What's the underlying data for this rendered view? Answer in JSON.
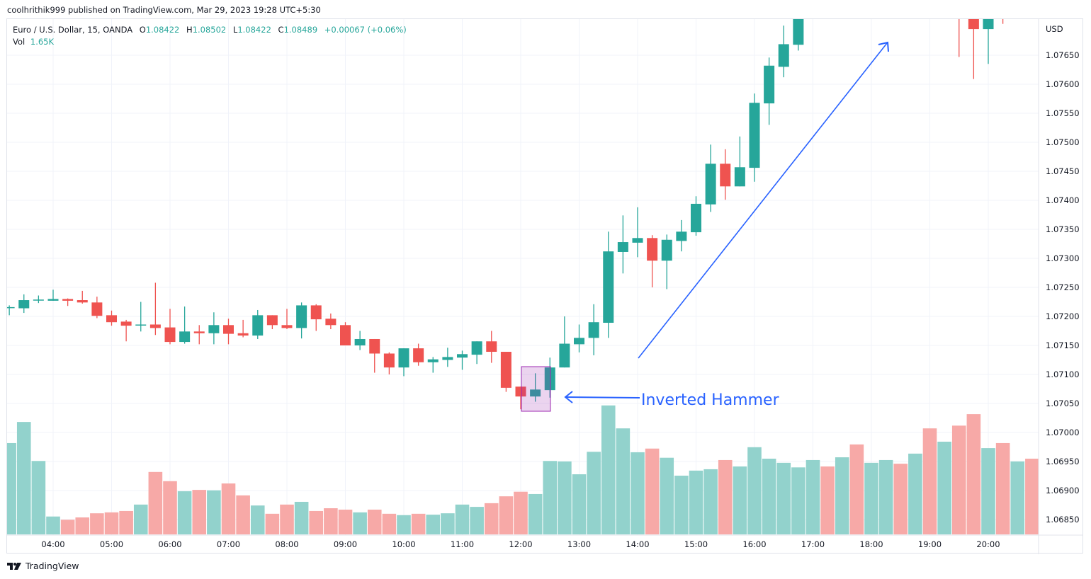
{
  "header": {
    "published": "coolhrithik999 published on TradingView.com, Mar 29, 2023 19:28 UTC+5:30"
  },
  "legend": {
    "symbol": "Euro / U.S. Dollar, 15, OANDA",
    "o_label": "O",
    "o_value": "1.08422",
    "h_label": "H",
    "h_value": "1.08502",
    "l_label": "L",
    "l_value": "1.08422",
    "c_label": "C",
    "c_value": "1.08489",
    "change": "+0.00067 (+0.06%)",
    "vol_label": "Vol",
    "vol_value": "1.65K"
  },
  "footer": {
    "brand": "TradingView"
  },
  "colors": {
    "up": "#26a69a",
    "down": "#ef5350",
    "vol_up": "#92d2cc",
    "vol_down": "#f7a9a7",
    "annotation": "#2962ff",
    "highlight": "#9c27b0"
  },
  "chart_data": {
    "type": "candlestick",
    "currency_label": "USD",
    "interval_minutes": 15,
    "grid": true,
    "y_ticks": [
      "1.07650",
      "1.07600",
      "1.07550",
      "1.07500",
      "1.07450",
      "1.07400",
      "1.07350",
      "1.07300",
      "1.07250",
      "1.07200",
      "1.07150",
      "1.07100",
      "1.07050",
      "1.07000",
      "1.06950",
      "1.06900",
      "1.06850"
    ],
    "ylim": [
      1.0683,
      1.07712
    ],
    "x_ticks": [
      "04:00",
      "05:00",
      "06:00",
      "07:00",
      "08:00",
      "09:00",
      "10:00",
      "11:00",
      "12:00",
      "13:00",
      "14:00",
      "15:00",
      "16:00",
      "17:00",
      "18:00",
      "19:00",
      "20:00"
    ],
    "columns": [
      "time",
      "open",
      "high",
      "low",
      "close",
      "volume_k",
      "direction"
    ],
    "candles": [
      [
        "03:15",
        1.07215,
        1.07219,
        1.07202,
        1.07216,
        1.99,
        "up"
      ],
      [
        "03:30",
        1.07214,
        1.07238,
        1.07206,
        1.07228,
        2.45,
        "up"
      ],
      [
        "03:45",
        1.07228,
        1.07236,
        1.07223,
        1.07229,
        1.6,
        "up"
      ],
      [
        "04:00",
        1.07227,
        1.07246,
        1.07227,
        1.0723,
        0.39,
        "up"
      ],
      [
        "04:15",
        1.0723,
        1.07231,
        1.07218,
        1.07227,
        0.32,
        "down"
      ],
      [
        "04:30",
        1.07228,
        1.07244,
        1.07222,
        1.07224,
        0.37,
        "down"
      ],
      [
        "04:45",
        1.07224,
        1.07234,
        1.07197,
        1.07201,
        0.46,
        "down"
      ],
      [
        "05:00",
        1.07202,
        1.0721,
        1.07184,
        1.0719,
        0.48,
        "down"
      ],
      [
        "05:15",
        1.07191,
        1.07194,
        1.07157,
        1.07184,
        0.51,
        "down"
      ],
      [
        "05:30",
        1.07185,
        1.07225,
        1.07174,
        1.07186,
        0.65,
        "up"
      ],
      [
        "05:45",
        1.07186,
        1.07258,
        1.07168,
        1.0718,
        1.36,
        "down"
      ],
      [
        "06:00",
        1.07181,
        1.07213,
        1.07152,
        1.07156,
        1.16,
        "down"
      ],
      [
        "06:15",
        1.07156,
        1.07217,
        1.07153,
        1.07174,
        0.94,
        "up"
      ],
      [
        "06:30",
        1.07174,
        1.07185,
        1.07152,
        1.07171,
        0.97,
        "down"
      ],
      [
        "06:45",
        1.07171,
        1.07207,
        1.07152,
        1.07185,
        0.96,
        "up"
      ],
      [
        "07:00",
        1.07185,
        1.07196,
        1.07152,
        1.0717,
        1.11,
        "down"
      ],
      [
        "07:15",
        1.07171,
        1.07194,
        1.07164,
        1.07167,
        0.85,
        "down"
      ],
      [
        "07:30",
        1.07167,
        1.07211,
        1.07161,
        1.07202,
        0.63,
        "up"
      ],
      [
        "07:45",
        1.07202,
        1.07202,
        1.07178,
        1.07185,
        0.45,
        "down"
      ],
      [
        "08:00",
        1.07185,
        1.07213,
        1.07178,
        1.0718,
        0.65,
        "down"
      ],
      [
        "08:15",
        1.0718,
        1.07224,
        1.07162,
        1.07219,
        0.71,
        "up"
      ],
      [
        "08:30",
        1.07219,
        1.07221,
        1.07175,
        1.07195,
        0.51,
        "down"
      ],
      [
        "08:45",
        1.07196,
        1.07205,
        1.07178,
        1.07185,
        0.57,
        "down"
      ],
      [
        "09:00",
        1.07185,
        1.0719,
        1.0715,
        1.0715,
        0.54,
        "down"
      ],
      [
        "09:15",
        1.0715,
        1.07175,
        1.07142,
        1.07161,
        0.48,
        "up"
      ],
      [
        "09:30",
        1.07161,
        1.07161,
        1.07103,
        1.07136,
        0.54,
        "down"
      ],
      [
        "09:45",
        1.07136,
        1.07138,
        1.071,
        1.07112,
        0.45,
        "down"
      ],
      [
        "10:00",
        1.07112,
        1.07145,
        1.07097,
        1.07145,
        0.42,
        "up"
      ],
      [
        "10:15",
        1.07145,
        1.07153,
        1.07115,
        1.07121,
        0.45,
        "down"
      ],
      [
        "10:30",
        1.07121,
        1.0713,
        1.07103,
        1.07126,
        0.43,
        "up"
      ],
      [
        "10:45",
        1.07125,
        1.07146,
        1.07113,
        1.0713,
        0.46,
        "up"
      ],
      [
        "11:00",
        1.07129,
        1.07141,
        1.07108,
        1.07135,
        0.65,
        "up"
      ],
      [
        "11:15",
        1.07134,
        1.07157,
        1.07118,
        1.07157,
        0.6,
        "up"
      ],
      [
        "11:30",
        1.07157,
        1.07175,
        1.0712,
        1.07139,
        0.68,
        "down"
      ],
      [
        "11:45",
        1.07139,
        1.07139,
        1.0707,
        1.07077,
        0.83,
        "down"
      ],
      [
        "12:00",
        1.07079,
        1.07079,
        1.0704,
        1.07062,
        0.93,
        "down"
      ],
      [
        "12:15",
        1.07062,
        1.07102,
        1.07053,
        1.07074,
        0.88,
        "up"
      ],
      [
        "12:30",
        1.07073,
        1.07129,
        1.0706,
        1.07112,
        1.6,
        "up"
      ],
      [
        "12:45",
        1.07112,
        1.072,
        1.07112,
        1.07153,
        1.59,
        "up"
      ],
      [
        "13:00",
        1.07152,
        1.07186,
        1.07138,
        1.07163,
        1.31,
        "up"
      ],
      [
        "13:15",
        1.07163,
        1.07221,
        1.07133,
        1.0719,
        1.8,
        "up"
      ],
      [
        "13:30",
        1.07189,
        1.07346,
        1.07163,
        1.07312,
        2.81,
        "up"
      ],
      [
        "13:45",
        1.07311,
        1.07374,
        1.07274,
        1.07328,
        2.31,
        "up"
      ],
      [
        "14:00",
        1.07327,
        1.07388,
        1.07302,
        1.07335,
        1.79,
        "up"
      ],
      [
        "14:15",
        1.07335,
        1.0734,
        1.0725,
        1.07296,
        1.87,
        "down"
      ],
      [
        "14:30",
        1.07296,
        1.07341,
        1.07247,
        1.07332,
        1.67,
        "up"
      ],
      [
        "14:45",
        1.0733,
        1.07366,
        1.07312,
        1.07346,
        1.28,
        "up"
      ],
      [
        "15:00",
        1.07345,
        1.07407,
        1.07339,
        1.07394,
        1.39,
        "up"
      ],
      [
        "15:15",
        1.07393,
        1.07496,
        1.0738,
        1.07463,
        1.42,
        "up"
      ],
      [
        "15:30",
        1.07463,
        1.07488,
        1.07401,
        1.07424,
        1.62,
        "down"
      ],
      [
        "15:45",
        1.07424,
        1.0751,
        1.07424,
        1.07457,
        1.48,
        "up"
      ],
      [
        "16:00",
        1.07456,
        1.07584,
        1.07432,
        1.07568,
        1.9,
        "up"
      ],
      [
        "16:15",
        1.07567,
        1.07646,
        1.0753,
        1.07632,
        1.65,
        "up"
      ],
      [
        "16:30",
        1.0763,
        1.07701,
        1.07612,
        1.07669,
        1.56,
        "up"
      ],
      [
        "16:45",
        1.07668,
        null,
        1.07658,
        null,
        1.46,
        "up"
      ],
      [
        "17:00",
        null,
        null,
        null,
        null,
        1.62,
        "up"
      ],
      [
        "17:15",
        null,
        null,
        null,
        null,
        1.48,
        "down"
      ],
      [
        "17:30",
        null,
        null,
        null,
        null,
        1.68,
        "up"
      ],
      [
        "17:45",
        null,
        null,
        null,
        null,
        1.96,
        "down"
      ],
      [
        "18:00",
        null,
        null,
        null,
        null,
        1.56,
        "up"
      ],
      [
        "18:15",
        null,
        null,
        null,
        null,
        1.62,
        "up"
      ],
      [
        "18:30",
        null,
        null,
        null,
        null,
        1.54,
        "down"
      ],
      [
        "18:45",
        null,
        null,
        null,
        null,
        1.76,
        "up"
      ],
      [
        "19:00",
        null,
        null,
        null,
        null,
        2.31,
        "down"
      ],
      [
        "19:15",
        null,
        null,
        null,
        null,
        2.02,
        "up"
      ],
      [
        "19:30",
        null,
        null,
        1.07647,
        null,
        2.37,
        "down"
      ],
      [
        "19:45",
        null,
        null,
        1.07609,
        1.07695,
        2.62,
        "down"
      ],
      [
        "20:00",
        1.07695,
        null,
        1.07635,
        null,
        1.88,
        "up"
      ],
      [
        "20:15",
        null,
        null,
        1.07704,
        null,
        1.99,
        "down"
      ],
      [
        "20:30",
        null,
        null,
        null,
        null,
        1.59,
        "up"
      ],
      [
        "20:45",
        null,
        null,
        null,
        null,
        1.65,
        "down"
      ]
    ],
    "annotations": {
      "pattern_label": "Inverted Hammer",
      "highlighted_candle": "12:15",
      "trend_arrow": "up"
    }
  }
}
